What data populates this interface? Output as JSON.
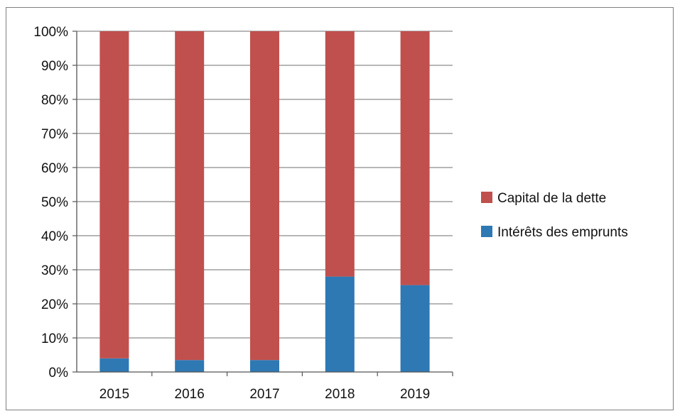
{
  "chart_data": {
    "type": "bar",
    "stacked": true,
    "categories": [
      "2015",
      "2016",
      "2017",
      "2018",
      "2019"
    ],
    "series": [
      {
        "name": "Intérêts des emprunts",
        "color": "#2e78b4",
        "values": [
          4,
          3.5,
          3.5,
          28,
          25.5
        ]
      },
      {
        "name": "Capital de la dette",
        "color": "#c0504d",
        "values": [
          96,
          96.5,
          96.5,
          72,
          74.5
        ]
      }
    ],
    "ylim": [
      0,
      100
    ],
    "yticks": [
      "0%",
      "10%",
      "20%",
      "30%",
      "40%",
      "50%",
      "60%",
      "70%",
      "80%",
      "90%",
      "100%"
    ],
    "grid": true,
    "legend_position": "right",
    "legend_order": [
      "Capital de la dette",
      "Intérêts des emprunts"
    ],
    "title": "",
    "xlabel": "",
    "ylabel": ""
  }
}
